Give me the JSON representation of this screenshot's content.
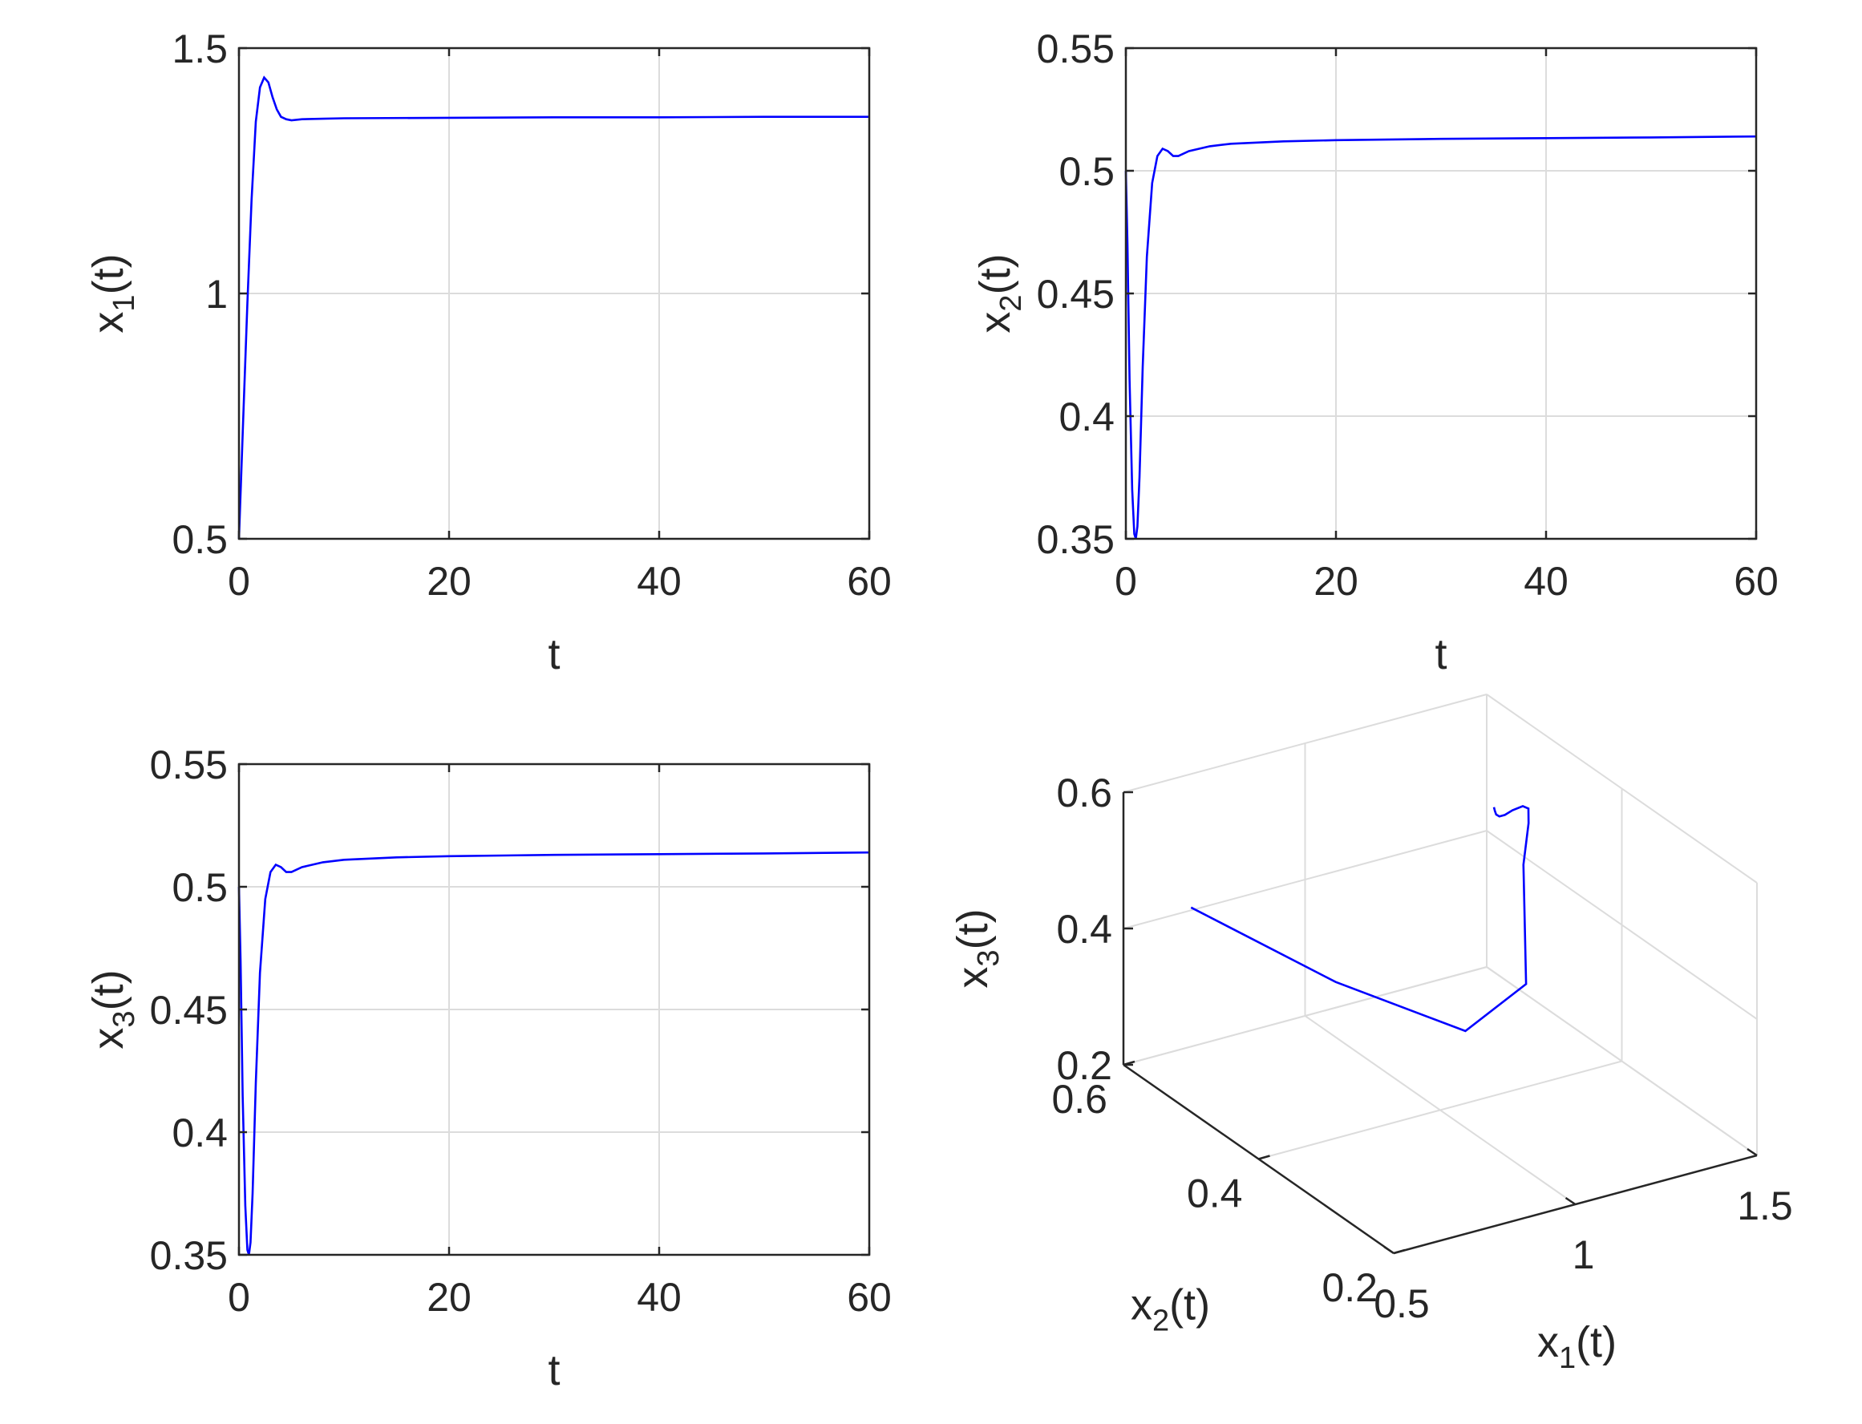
{
  "figure": {
    "series_color": "#0000ff",
    "axis_color": "#262626",
    "grid_color": "#dcdcdc"
  },
  "chart_data": [
    {
      "id": "x1",
      "type": "line",
      "xlabel": "t",
      "ylabel": "x",
      "ylabel_sub": "1",
      "ylabel_suffix": "(t)",
      "xlim": [
        0,
        60
      ],
      "ylim": [
        0.5,
        1.5
      ],
      "xticks": [
        0,
        20,
        40,
        60
      ],
      "xtick_labels": [
        "0",
        "20",
        "40",
        "60"
      ],
      "yticks": [
        0.5,
        1,
        1.5
      ],
      "ytick_labels": [
        "0.5",
        "1",
        "1.5"
      ],
      "grid": true,
      "series": [
        {
          "x": [
            0,
            0.4,
            0.8,
            1.2,
            1.6,
            2.0,
            2.4,
            2.8,
            3.2,
            3.6,
            4.0,
            4.5,
            5.0,
            6.0,
            8.0,
            10,
            20,
            30,
            40,
            50,
            60
          ],
          "y": [
            0.5,
            0.74,
            0.98,
            1.19,
            1.35,
            1.42,
            1.44,
            1.43,
            1.4,
            1.375,
            1.36,
            1.355,
            1.353,
            1.355,
            1.356,
            1.357,
            1.358,
            1.359,
            1.359,
            1.36,
            1.36
          ]
        }
      ]
    },
    {
      "id": "x2",
      "type": "line",
      "xlabel": "t",
      "ylabel": "x",
      "ylabel_sub": "2",
      "ylabel_suffix": "(t)",
      "xlim": [
        0,
        60
      ],
      "ylim": [
        0.35,
        0.55
      ],
      "xticks": [
        0,
        20,
        40,
        60
      ],
      "xtick_labels": [
        "0",
        "20",
        "40",
        "60"
      ],
      "yticks": [
        0.35,
        0.4,
        0.45,
        0.5,
        0.55
      ],
      "ytick_labels": [
        "0.35",
        "0.4",
        "0.45",
        "0.5",
        "0.55"
      ],
      "grid": true,
      "series": [
        {
          "x": [
            0,
            0.15,
            0.35,
            0.6,
            0.8,
            0.95,
            1.1,
            1.3,
            1.6,
            2.0,
            2.5,
            3.0,
            3.5,
            4.0,
            4.5,
            5.0,
            6.0,
            8.0,
            10,
            15,
            20,
            30,
            40,
            50,
            60
          ],
          "y": [
            0.5,
            0.47,
            0.415,
            0.37,
            0.352,
            0.35,
            0.355,
            0.375,
            0.42,
            0.465,
            0.495,
            0.506,
            0.509,
            0.508,
            0.506,
            0.506,
            0.508,
            0.51,
            0.511,
            0.512,
            0.5125,
            0.513,
            0.5133,
            0.5136,
            0.514
          ]
        }
      ]
    },
    {
      "id": "x3",
      "type": "line",
      "xlabel": "t",
      "ylabel": "x",
      "ylabel_sub": "3",
      "ylabel_suffix": "(t)",
      "xlim": [
        0,
        60
      ],
      "ylim": [
        0.35,
        0.55
      ],
      "xticks": [
        0,
        20,
        40,
        60
      ],
      "xtick_labels": [
        "0",
        "20",
        "40",
        "60"
      ],
      "yticks": [
        0.35,
        0.4,
        0.45,
        0.5,
        0.55
      ],
      "ytick_labels": [
        "0.35",
        "0.4",
        "0.45",
        "0.5",
        "0.55"
      ],
      "grid": true,
      "series": [
        {
          "x": [
            0,
            0.15,
            0.35,
            0.6,
            0.8,
            0.95,
            1.1,
            1.3,
            1.6,
            2.0,
            2.5,
            3.0,
            3.5,
            4.0,
            4.5,
            5.0,
            6.0,
            8.0,
            10,
            15,
            20,
            30,
            40,
            50,
            60
          ],
          "y": [
            0.5,
            0.47,
            0.415,
            0.37,
            0.352,
            0.35,
            0.355,
            0.375,
            0.42,
            0.465,
            0.495,
            0.506,
            0.509,
            0.508,
            0.506,
            0.506,
            0.508,
            0.51,
            0.511,
            0.512,
            0.5125,
            0.513,
            0.5133,
            0.5136,
            0.514
          ]
        }
      ]
    },
    {
      "id": "phase3d",
      "type": "line",
      "projection": "3d",
      "xlabel": "x",
      "xlabel_sub": "1",
      "xlabel_suffix": "(t)",
      "ylabel": "x",
      "ylabel_sub": "2",
      "ylabel_suffix": "(t)",
      "zlabel": "x",
      "zlabel_sub": "3",
      "zlabel_suffix": "(t)",
      "xlim": [
        0.5,
        1.5
      ],
      "ylim": [
        0.2,
        0.6
      ],
      "zlim": [
        0.2,
        0.6
      ],
      "xticks": [
        0.5,
        1,
        1.5
      ],
      "xtick_labels": [
        "0.5",
        "1",
        "1.5"
      ],
      "yticks": [
        0.2,
        0.4,
        0.6
      ],
      "ytick_labels": [
        "0.2",
        "0.4",
        "0.6"
      ],
      "zticks": [
        0.2,
        0.4,
        0.6
      ],
      "ztick_labels": [
        "0.2",
        "0.4",
        "0.6"
      ],
      "grid": true,
      "series": [
        {
          "x": [
            0.5,
            0.74,
            0.98,
            1.19,
            1.35,
            1.42,
            1.44,
            1.43,
            1.4,
            1.375,
            1.36,
            1.355,
            1.357,
            1.36
          ],
          "y": [
            0.5,
            0.415,
            0.352,
            0.375,
            0.465,
            0.495,
            0.506,
            0.509,
            0.508,
            0.506,
            0.506,
            0.508,
            0.511,
            0.514
          ],
          "z": [
            0.5,
            0.415,
            0.352,
            0.375,
            0.465,
            0.495,
            0.506,
            0.509,
            0.508,
            0.506,
            0.506,
            0.508,
            0.511,
            0.514
          ]
        }
      ]
    }
  ]
}
